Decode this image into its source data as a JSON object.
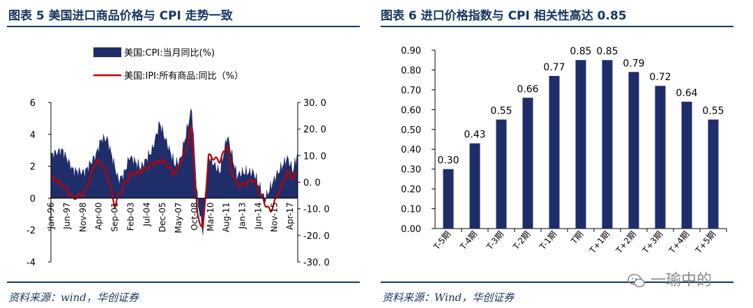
{
  "left_panel": {
    "title": "图表 5   美国进口商品价格与 CPI 走势一致",
    "source": "资料来源：wind，华创证券"
  },
  "right_panel": {
    "title": "图表 6   进口价格指数与 CPI 相关性高达 0.85",
    "source": "资料来源：Wind，华创证券"
  },
  "watermark": {
    "text": "一瑜中的",
    "icon": "wechat-icon"
  },
  "colors": {
    "navy": "#1f2d6b",
    "red": "#c00000",
    "rule": "#14365f"
  },
  "chart_data": [
    {
      "type": "area",
      "legend": {
        "placement": "top-left",
        "entries": [
          "美国:CPI:当月同比(%)",
          "美国:IPI:所有商品:同比（%）"
        ]
      },
      "x_tick_labels": [
        "Jan-96",
        "Jun-97",
        "Nov-98",
        "Apr-00",
        "Sep-01",
        "Feb-03",
        "Jul-04",
        "Dec-05",
        "May-07",
        "Oct-08",
        "Mar-10",
        "Aug-11",
        "Jan-13",
        "Jun-14",
        "Nov-15",
        "Apr-17"
      ],
      "ylim_left": [
        -4,
        6
      ],
      "yticks_left": [
        "6",
        "4",
        "2",
        "0",
        "-2",
        "-4"
      ],
      "ylim_right": [
        -30,
        30
      ],
      "yticks_right": [
        "30. 0",
        "20. 0",
        "10. 0",
        "0. 0",
        "-10. 0",
        "-20. 0",
        "-30. 0"
      ],
      "grid": false,
      "series": [
        {
          "name": "美国:CPI:当月同比(%)",
          "kind": "area",
          "axis": "left",
          "x": [
            "Jan-96",
            "Jan-97",
            "Jan-98",
            "Jan-99",
            "Jan-00",
            "Jul-00",
            "Jan-01",
            "Jan-02",
            "Jul-02",
            "Jan-03",
            "Jan-04",
            "Jan-05",
            "Sep-05",
            "Jan-06",
            "Jan-07",
            "Jul-07",
            "Jul-08",
            "Jan-09",
            "Jul-09",
            "Jan-10",
            "Jan-11",
            "Sep-11",
            "Jan-12",
            "Jul-12",
            "Jan-13",
            "Jan-14",
            "Jan-15",
            "Jan-16",
            "Jan-17",
            "Jul-17",
            "Dec-17"
          ],
          "values": [
            2.7,
            3.0,
            1.7,
            1.6,
            2.7,
            3.7,
            3.7,
            1.1,
            1.5,
            2.6,
            1.9,
            3.0,
            4.7,
            4.0,
            2.1,
            2.4,
            5.6,
            0.0,
            -2.1,
            2.6,
            1.6,
            3.9,
            2.9,
            1.4,
            1.6,
            1.6,
            -0.1,
            1.4,
            2.5,
            1.7,
            2.8
          ]
        },
        {
          "name": "美国:IPI:所有商品:同比（%）",
          "kind": "line",
          "axis": "right",
          "x": [
            "Jan-96",
            "Jan-97",
            "Jan-98",
            "Jan-99",
            "Jan-00",
            "Jul-00",
            "Jan-01",
            "Sep-01",
            "Jan-02",
            "Jan-03",
            "Jan-04",
            "Jan-05",
            "Jan-06",
            "Jan-07",
            "Jan-08",
            "Jul-08",
            "Jan-09",
            "Jul-09",
            "Jan-10",
            "Jan-11",
            "Sep-11",
            "Jan-12",
            "Jul-12",
            "Jan-13",
            "Jan-14",
            "Jan-15",
            "Jul-15",
            "Jan-16",
            "Jan-17",
            "Jul-17",
            "Dec-17"
          ],
          "values": [
            2.0,
            -1.0,
            -6.0,
            -4.0,
            8.0,
            7.0,
            3.0,
            -9.0,
            -5.0,
            3.0,
            4.0,
            7.0,
            8.0,
            3.0,
            12.0,
            21.0,
            -12.0,
            -18.0,
            10.0,
            8.0,
            14.0,
            5.0,
            -1.0,
            -1.0,
            1.0,
            -8.0,
            -11.0,
            -6.0,
            4.0,
            1.5,
            4.0
          ]
        }
      ]
    },
    {
      "type": "bar",
      "categories": [
        "T-5期",
        "T-4期",
        "T-3期",
        "T-2期",
        "T-1期",
        "T期",
        "T+1期",
        "T+2期",
        "T+3期",
        "T+4期",
        "T+5期"
      ],
      "values": [
        0.3,
        0.43,
        0.55,
        0.66,
        0.77,
        0.85,
        0.85,
        0.79,
        0.72,
        0.64,
        0.55
      ],
      "value_labels": [
        "0.30",
        "0.43",
        "0.55",
        "0.66",
        "0.77",
        "0.85",
        "0.85",
        "0.79",
        "0.72",
        "0.64",
        "0.55"
      ],
      "ylim": [
        0,
        0.9
      ],
      "yticks": [
        "0.90",
        "0.80",
        "0.70",
        "0.60",
        "0.50",
        "0.40",
        "0.30",
        "0.20",
        "0.10",
        "0.00"
      ],
      "grid": false
    }
  ]
}
